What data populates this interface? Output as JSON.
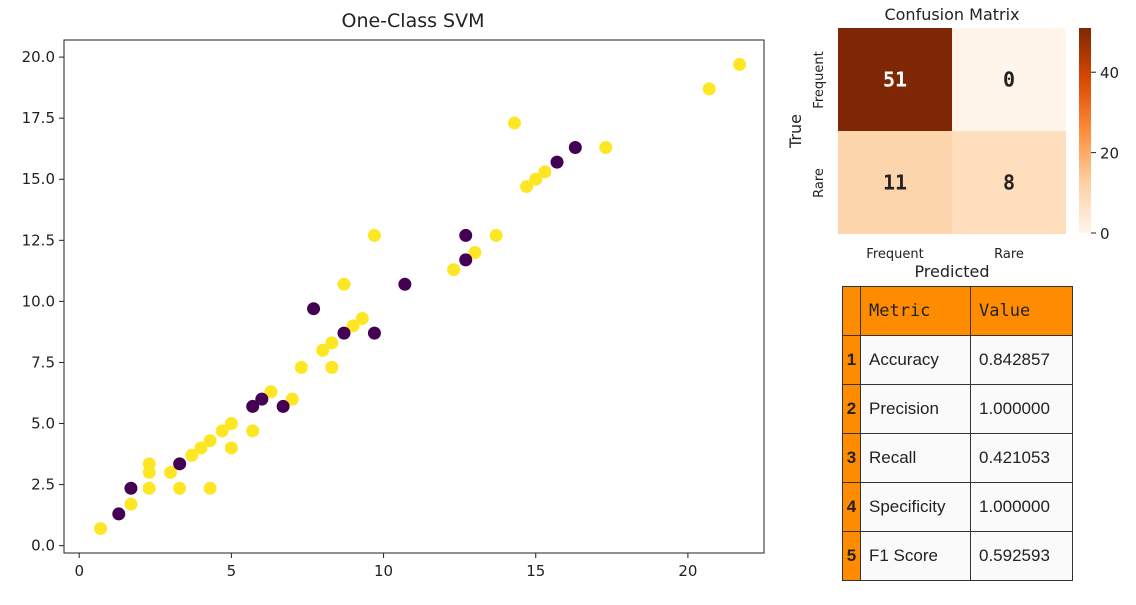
{
  "chart_data": [
    {
      "type": "scatter",
      "title": "One-Class SVM",
      "xlabel": "",
      "ylabel": "",
      "xlim": [
        -0.5,
        22.5
      ],
      "ylim": [
        -0.3,
        20.7
      ],
      "xticks": [
        0,
        5,
        10,
        15,
        20
      ],
      "xtick_labels": [
        "0",
        "5",
        "10",
        "15",
        "20"
      ],
      "yticks": [
        0,
        2.5,
        5,
        7.5,
        10,
        12.5,
        15,
        17.5,
        20
      ],
      "ytick_labels": [
        "0.0",
        "2.5",
        "5.0",
        "7.5",
        "10.0",
        "12.5",
        "15.0",
        "17.5",
        "20.0"
      ],
      "colors": {
        "yellow": "#fde725",
        "purple": "#440154"
      },
      "series": [
        {
          "name": "yellow",
          "points": [
            [
              0.7,
              0.7
            ],
            [
              1.7,
              1.7
            ],
            [
              2.3,
              2.35
            ],
            [
              2.3,
              3.0
            ],
            [
              2.3,
              3.35
            ],
            [
              3.0,
              3.0
            ],
            [
              3.3,
              2.35
            ],
            [
              3.7,
              3.7
            ],
            [
              4.0,
              4.0
            ],
            [
              4.3,
              4.3
            ],
            [
              4.3,
              2.35
            ],
            [
              4.7,
              4.7
            ],
            [
              5.0,
              5.0
            ],
            [
              5.0,
              4.0
            ],
            [
              5.7,
              4.7
            ],
            [
              6.3,
              6.3
            ],
            [
              7.0,
              6.0
            ],
            [
              7.3,
              7.3
            ],
            [
              8.0,
              8.0
            ],
            [
              8.3,
              8.3
            ],
            [
              8.3,
              7.3
            ],
            [
              8.7,
              10.7
            ],
            [
              9.0,
              9.0
            ],
            [
              9.3,
              9.3
            ],
            [
              9.7,
              12.7
            ],
            [
              12.3,
              11.3
            ],
            [
              13.0,
              12.0
            ],
            [
              13.7,
              12.7
            ],
            [
              14.3,
              17.3
            ],
            [
              14.7,
              14.7
            ],
            [
              15.0,
              15.0
            ],
            [
              15.3,
              15.3
            ],
            [
              17.3,
              16.3
            ],
            [
              20.7,
              18.7
            ],
            [
              21.7,
              19.7
            ]
          ]
        },
        {
          "name": "purple",
          "points": [
            [
              1.3,
              1.3
            ],
            [
              1.7,
              2.35
            ],
            [
              3.3,
              3.35
            ],
            [
              5.7,
              5.7
            ],
            [
              6.0,
              6.0
            ],
            [
              6.7,
              5.7
            ],
            [
              7.7,
              9.7
            ],
            [
              8.7,
              8.7
            ],
            [
              9.7,
              8.7
            ],
            [
              10.7,
              10.7
            ],
            [
              12.7,
              12.7
            ],
            [
              12.7,
              11.7
            ],
            [
              15.7,
              15.7
            ],
            [
              16.3,
              16.3
            ]
          ]
        }
      ]
    },
    {
      "type": "heatmap",
      "title": "Confusion Matrix",
      "xlabel": "Predicted",
      "ylabel": "True",
      "x_labels": [
        "Frequent",
        "Rare"
      ],
      "y_labels": [
        "Frequent",
        "Rare"
      ],
      "values": [
        [
          51,
          0
        ],
        [
          11,
          8
        ]
      ],
      "cell_labels": [
        [
          "51",
          "0"
        ],
        [
          "11",
          "8"
        ]
      ],
      "colorbar_ticks": [
        0,
        20,
        40
      ],
      "colorbar_tick_labels": [
        "0",
        "20",
        "40"
      ],
      "colormap": "Oranges"
    }
  ],
  "metrics_table": {
    "headers": [
      "",
      "Metric",
      "Value"
    ],
    "rows": [
      {
        "index": "1",
        "metric": "Accuracy",
        "value": "0.842857"
      },
      {
        "index": "2",
        "metric": "Precision",
        "value": "1.000000"
      },
      {
        "index": "3",
        "metric": "Recall",
        "value": "0.421053"
      },
      {
        "index": "4",
        "metric": "Specificity",
        "value": "1.000000"
      },
      {
        "index": "5",
        "metric": "F1 Score",
        "value": "0.592593"
      }
    ]
  }
}
